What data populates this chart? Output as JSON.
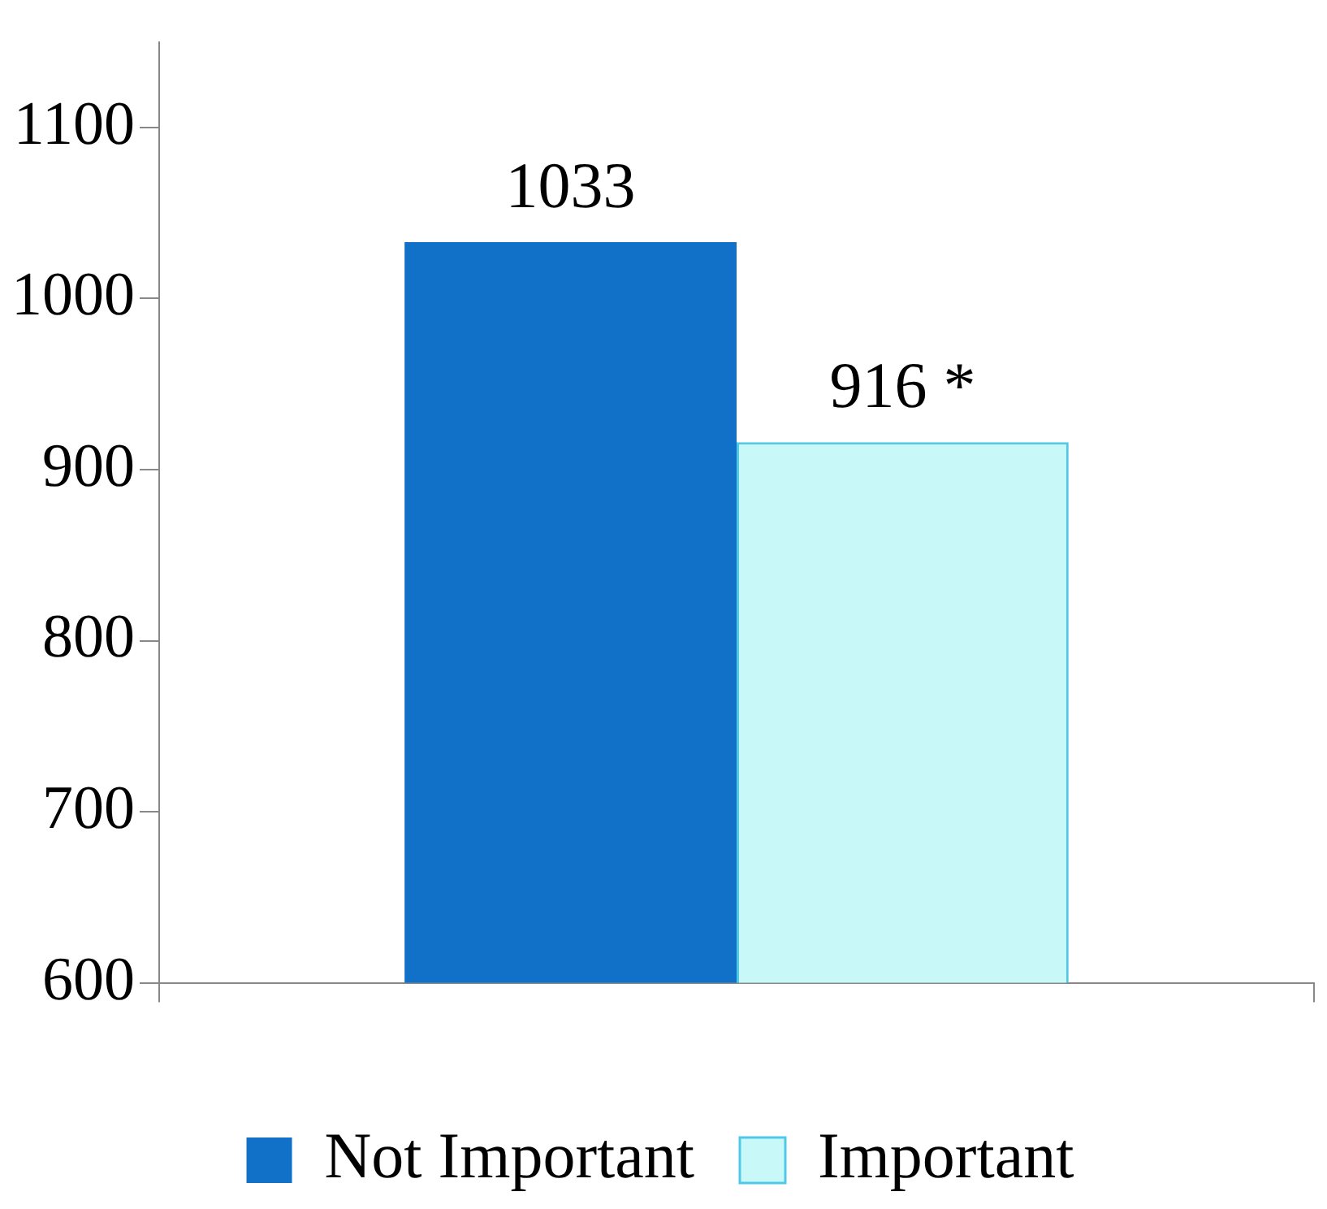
{
  "chart_data": {
    "type": "bar",
    "categories": [
      null
    ],
    "series": [
      {
        "name": "Not Important",
        "color": "#1170c8",
        "values": [
          1033
        ],
        "value_labels": [
          "1033"
        ]
      },
      {
        "name": "Important",
        "color": "#c8f8f8",
        "values": [
          916
        ],
        "value_labels": [
          "916 *"
        ]
      }
    ],
    "ylim": [
      600,
      1150
    ],
    "yticks": [
      600,
      700,
      800,
      900,
      1000,
      1100
    ],
    "grid": false,
    "legend": "bottom"
  }
}
